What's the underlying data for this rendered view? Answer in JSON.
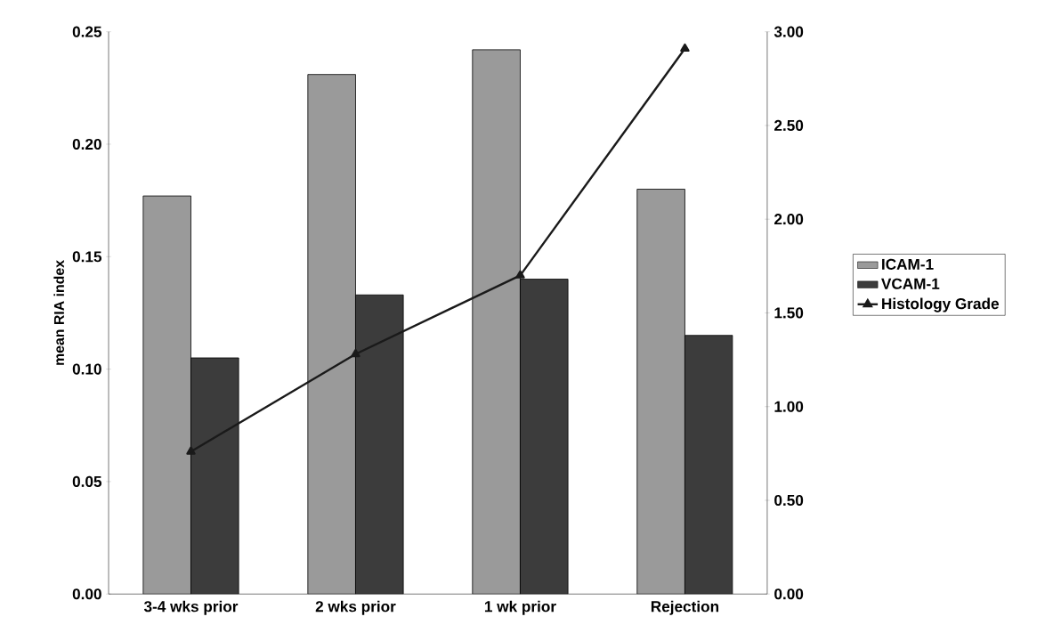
{
  "chart_data": {
    "type": "bar",
    "ylabel": "mean RIA index",
    "categories": [
      "3-4 wks prior",
      "2 wks prior",
      "1 wk prior",
      "Rejection"
    ],
    "series": [
      {
        "name": "ICAM-1",
        "color": "#9a9a9a",
        "values": [
          0.177,
          0.231,
          0.242,
          0.18
        ]
      },
      {
        "name": "VCAM-1",
        "color": "#3c3c3c",
        "values": [
          0.105,
          0.133,
          0.14,
          0.115
        ]
      },
      {
        "name": "Histology Grade",
        "type": "line",
        "axis": "y2",
        "color": "#1a1a1a",
        "marker": "triangle",
        "values": [
          0.76,
          1.28,
          1.7,
          2.91
        ]
      }
    ],
    "ylim": [
      0,
      0.25
    ],
    "yticks": [
      {
        "value": 0,
        "label": "0.00"
      },
      {
        "value": 0.05,
        "label": "0.05"
      },
      {
        "value": 0.1,
        "label": "0.10"
      },
      {
        "value": 0.15,
        "label": "0.15"
      },
      {
        "value": 0.2,
        "label": "0.20"
      },
      {
        "value": 0.25,
        "label": "0.25"
      }
    ],
    "y2lim": [
      0,
      3
    ],
    "y2ticks": [
      {
        "value": 0,
        "label": "0.00"
      },
      {
        "value": 0.5,
        "label": "0.50"
      },
      {
        "value": 1,
        "label": "1.00"
      },
      {
        "value": 1.5,
        "label": "1.50"
      },
      {
        "value": 2,
        "label": "2.00"
      },
      {
        "value": 2.5,
        "label": "2.50"
      },
      {
        "value": 3,
        "label": "3.00"
      }
    ],
    "grid": false,
    "legend": "right"
  }
}
